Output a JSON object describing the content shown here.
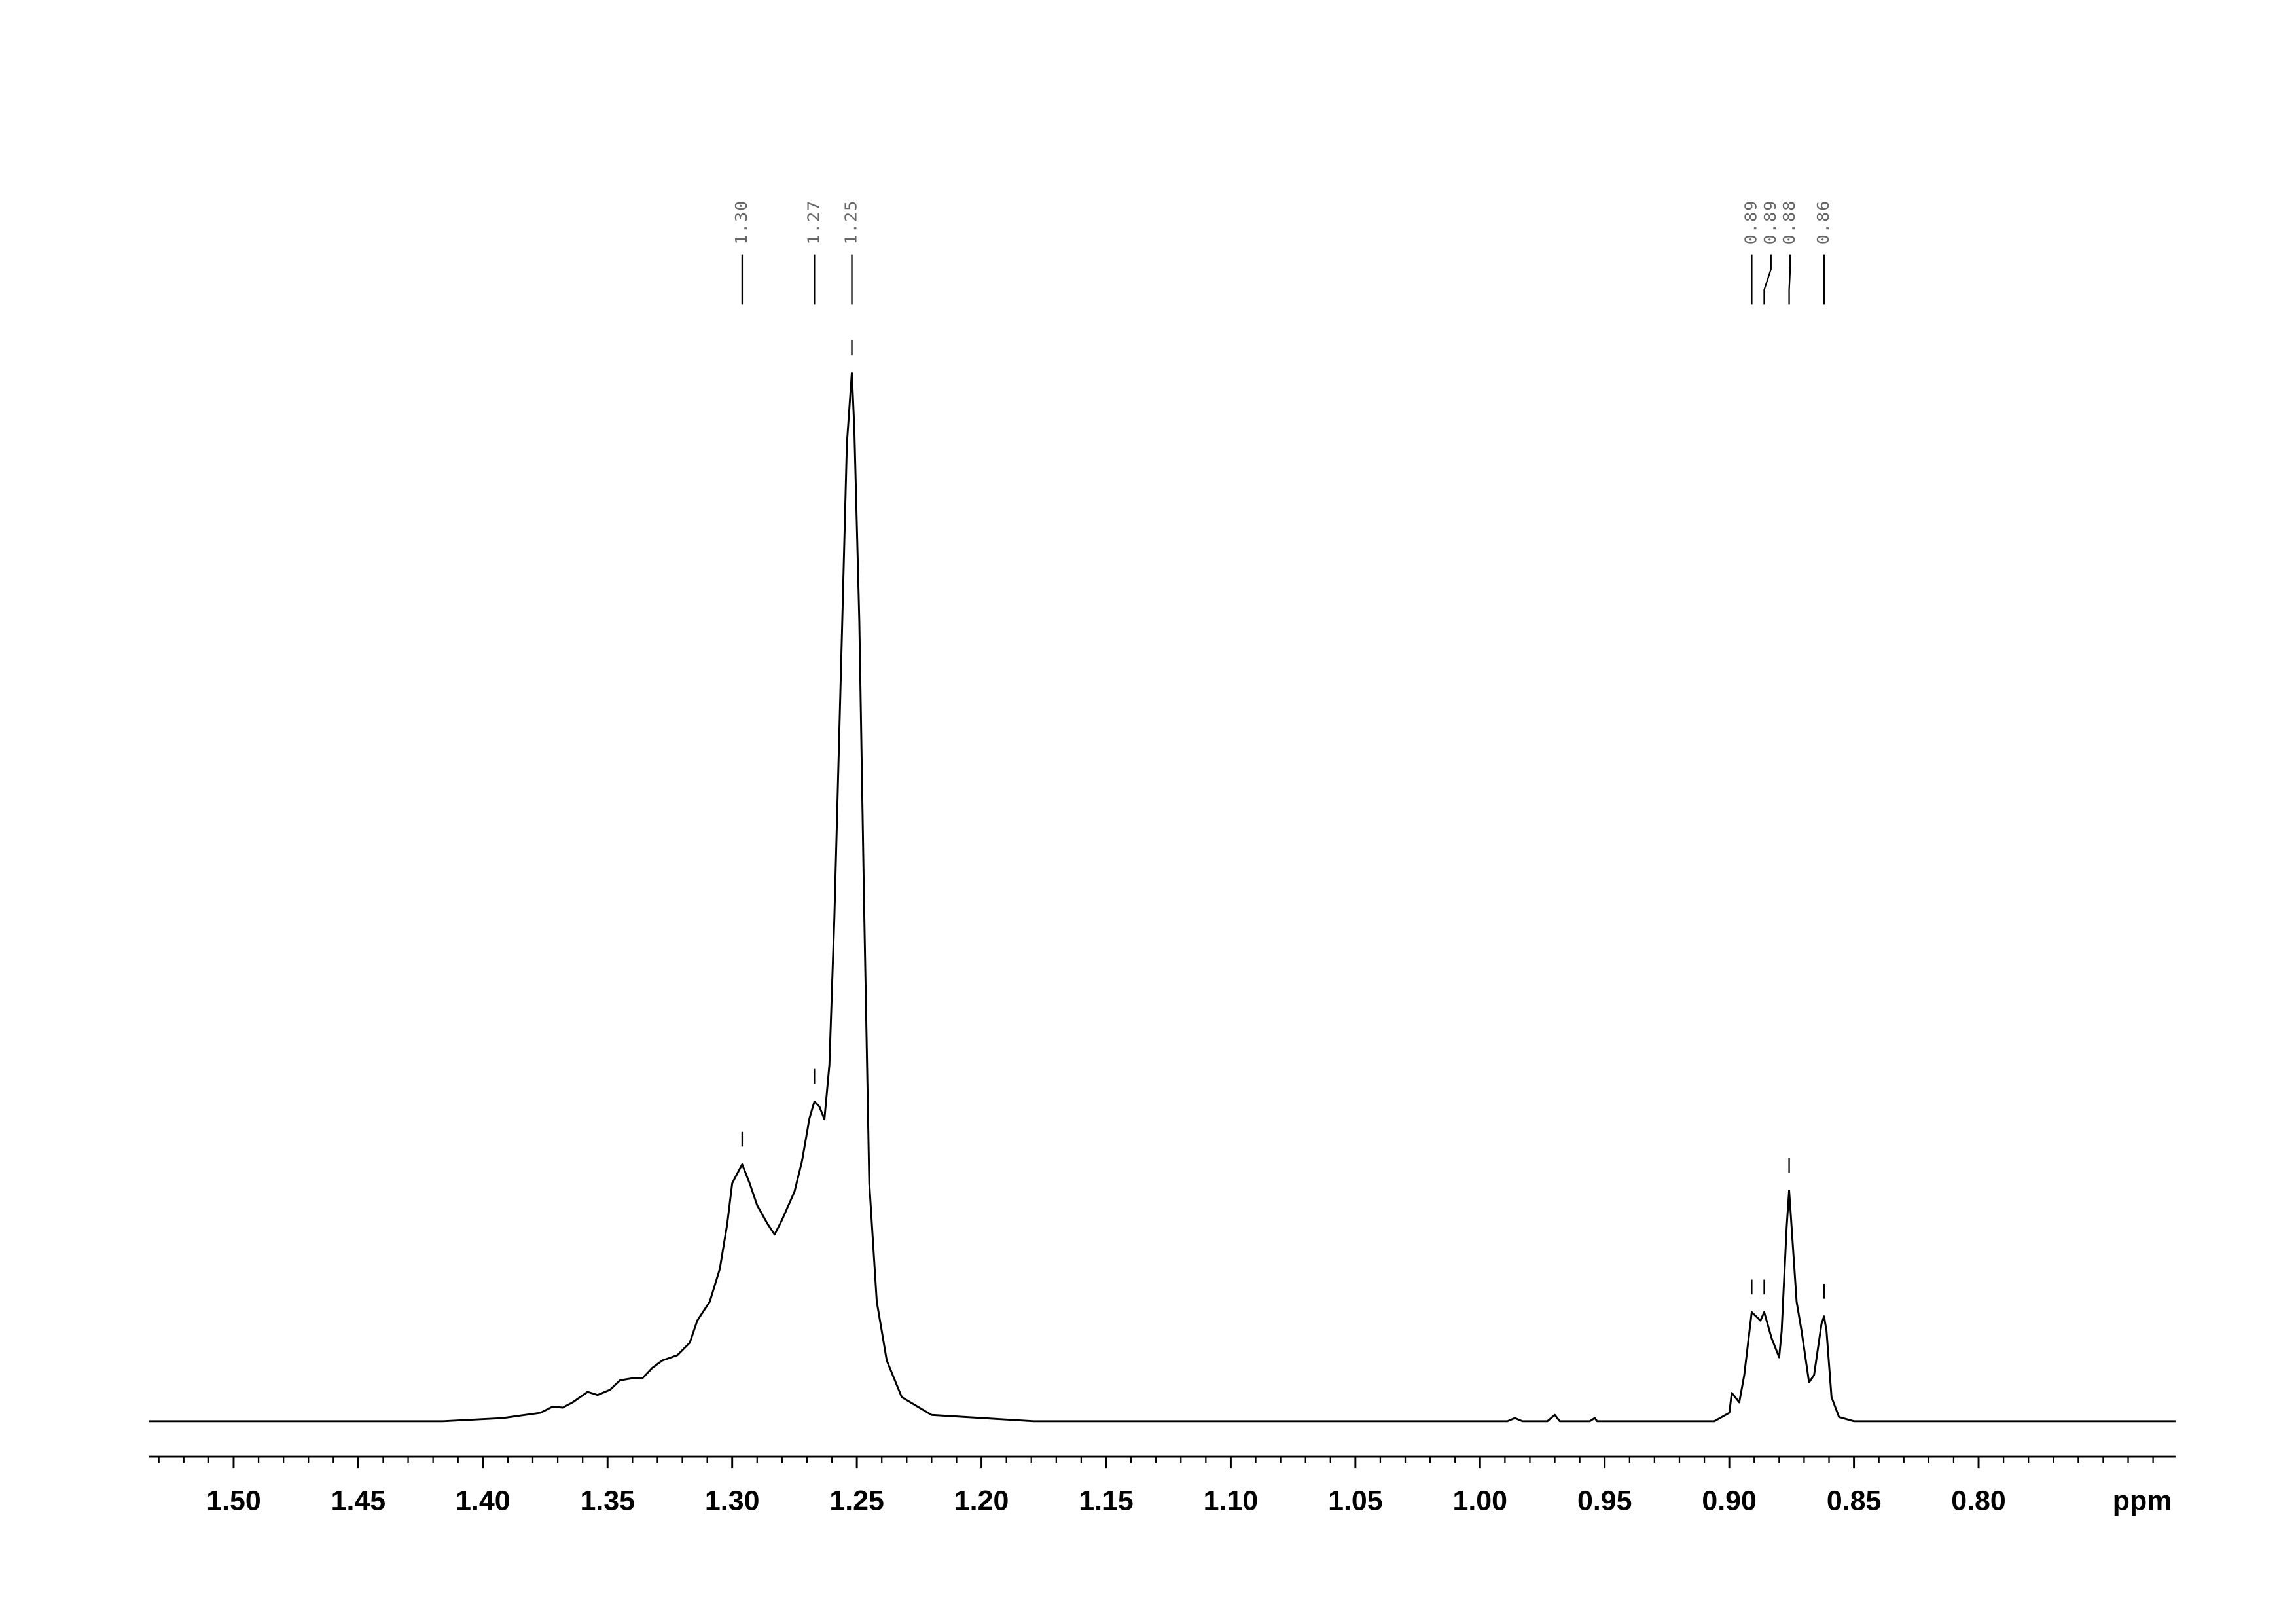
{
  "chart_data": {
    "type": "line",
    "x": [
      1.534,
      1.416,
      1.392,
      1.383,
      1.377,
      1.372,
      1.368,
      1.364,
      1.358,
      1.354,
      1.349,
      1.345,
      1.34,
      1.336,
      1.332,
      1.328,
      1.322,
      1.317,
      1.314,
      1.309,
      1.305,
      1.302,
      1.3,
      1.296,
      1.293,
      1.29,
      1.286,
      1.283,
      1.28,
      1.275,
      1.272,
      1.269,
      1.267,
      1.265,
      1.263,
      1.261,
      1.259,
      1.256,
      1.254,
      1.252,
      1.251,
      1.249,
      1.247,
      1.245,
      1.242,
      1.238,
      1.232,
      1.22,
      1.179,
      1.001,
      0.989,
      0.986,
      0.983,
      0.973,
      0.97,
      0.968,
      0.956,
      0.954,
      0.953,
      0.906,
      0.9,
      0.899,
      0.896,
      0.894,
      0.891,
      0.8875,
      0.886,
      0.883,
      0.88,
      0.879,
      0.877,
      0.876,
      0.875,
      0.873,
      0.871,
      0.868,
      0.866,
      0.863,
      0.862,
      0.861,
      0.859,
      0.856,
      0.85,
      0.8,
      0.721
    ],
    "values": [
      0,
      0,
      0.3,
      0.6,
      0.8,
      1.4,
      1.3,
      1.8,
      2.8,
      2.5,
      3.0,
      3.9,
      4.1,
      4.1,
      5.1,
      5.8,
      6.3,
      7.5,
      9.6,
      11.4,
      14.5,
      18.8,
      22.7,
      24.5,
      22.7,
      20.6,
      18.9,
      17.8,
      19.2,
      21.9,
      24.8,
      28.9,
      30.5,
      30.0,
      28.8,
      34.0,
      48.1,
      74.9,
      93.2,
      100,
      94.6,
      76.3,
      48.1,
      22.7,
      11.4,
      5.8,
      2.3,
      0.6,
      0,
      0,
      0,
      0.3,
      0,
      0,
      0.6,
      0,
      0,
      0.3,
      0,
      0,
      0.8,
      2.7,
      1.8,
      4.4,
      10.4,
      9.6,
      10.4,
      7.9,
      6.1,
      8.6,
      18.5,
      22.0,
      18.5,
      11.4,
      8.6,
      3.7,
      4.4,
      9.3,
      10.0,
      8.6,
      2.3,
      0.4,
      0,
      0,
      0
    ],
    "color": "#000000",
    "xlim": [
      1.534,
      0.721
    ],
    "ylim": [
      0,
      100
    ],
    "xticks": [
      {
        "value": 1.5,
        "label": "1.50"
      },
      {
        "value": 1.45,
        "label": "1.45"
      },
      {
        "value": 1.4,
        "label": "1.40"
      },
      {
        "value": 1.35,
        "label": "1.35"
      },
      {
        "value": 1.3,
        "label": "1.30"
      },
      {
        "value": 1.25,
        "label": "1.25"
      },
      {
        "value": 1.2,
        "label": "1.20"
      },
      {
        "value": 1.15,
        "label": "1.15"
      },
      {
        "value": 1.1,
        "label": "1.10"
      },
      {
        "value": 1.05,
        "label": "1.05"
      },
      {
        "value": 1.0,
        "label": "1.00"
      },
      {
        "value": 0.95,
        "label": "0.95"
      },
      {
        "value": 0.9,
        "label": "0.90"
      },
      {
        "value": 0.85,
        "label": "0.85"
      },
      {
        "value": 0.8,
        "label": "0.80"
      }
    ],
    "xminorticks": [
      1.53,
      1.52,
      1.51,
      1.5,
      1.49,
      1.48,
      1.47,
      1.46,
      1.45,
      1.44,
      1.43,
      1.42,
      1.41,
      1.4,
      1.39,
      1.38,
      1.37,
      1.36,
      1.35,
      1.34,
      1.33,
      1.32,
      1.31,
      1.3,
      1.29,
      1.28,
      1.27,
      1.26,
      1.25,
      1.24,
      1.23,
      1.22,
      1.21,
      1.2,
      1.19,
      1.18,
      1.17,
      1.16,
      1.15,
      1.14,
      1.13,
      1.12,
      1.11,
      1.1,
      1.09,
      1.08,
      1.07,
      1.06,
      1.05,
      1.04,
      1.03,
      1.02,
      1.01,
      1.0,
      0.99,
      0.98,
      0.97,
      0.96,
      0.95,
      0.94,
      0.93,
      0.92,
      0.91,
      0.9,
      0.89,
      0.88,
      0.87,
      0.86,
      0.85,
      0.84,
      0.83,
      0.82,
      0.81,
      0.8,
      0.79,
      0.78,
      0.77,
      0.76,
      0.75,
      0.74,
      0.73
    ],
    "xlabel": "ppm",
    "peaks": [
      {
        "value": 1.296,
        "label": "1.30"
      },
      {
        "value": 1.267,
        "label": "1.27"
      },
      {
        "value": 1.252,
        "label": "1.25"
      },
      {
        "value": 0.891,
        "label": "0.89"
      },
      {
        "value": 0.886,
        "label": "0.89"
      },
      {
        "value": 0.876,
        "label": "0.88"
      },
      {
        "value": 0.862,
        "label": "0.86"
      }
    ]
  }
}
